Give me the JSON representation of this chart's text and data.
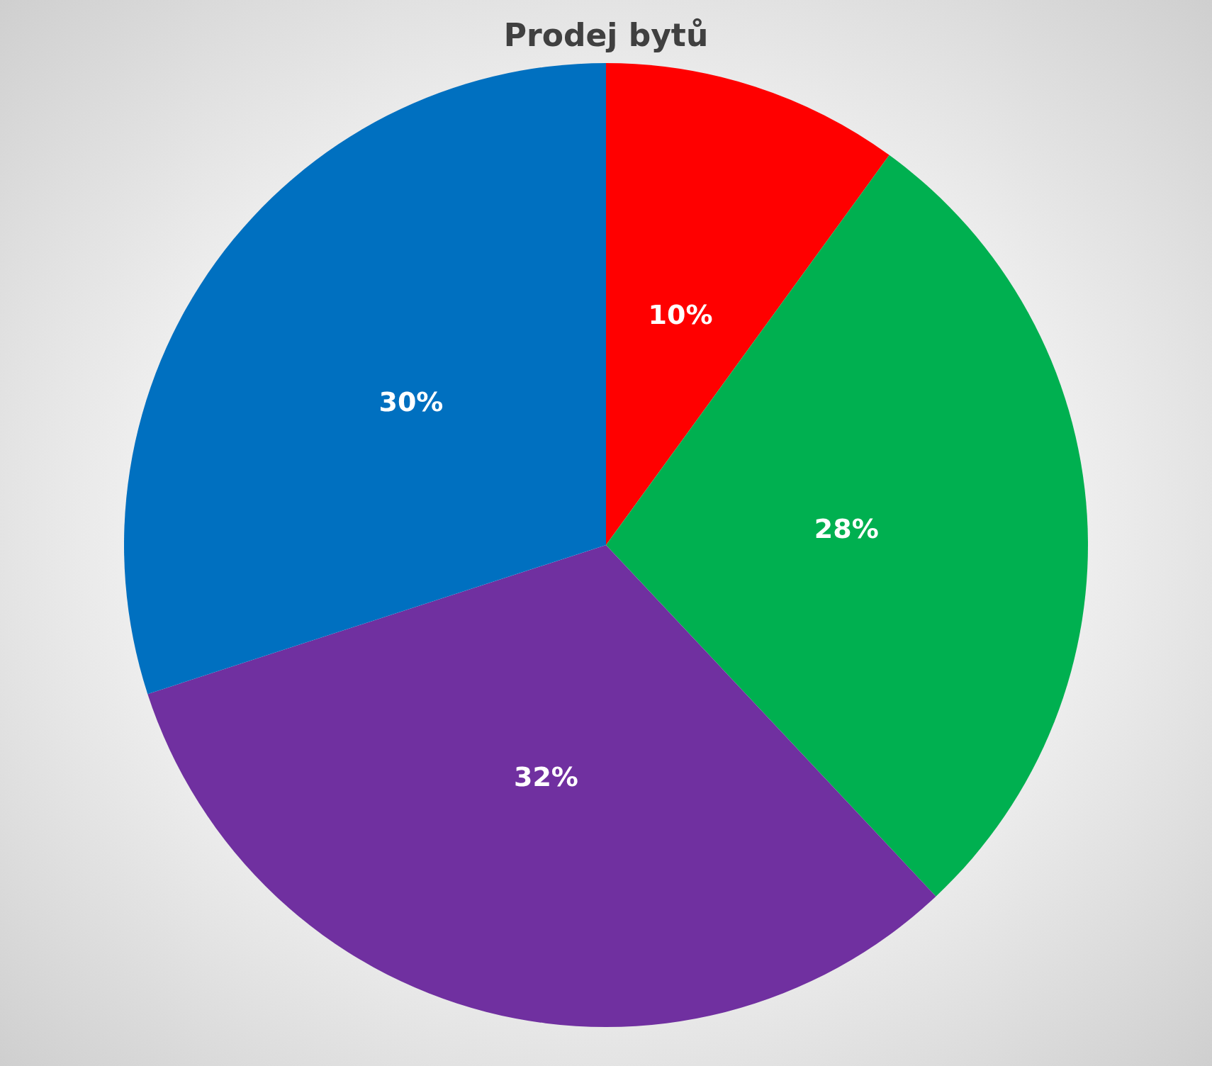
{
  "chart_data": {
    "type": "pie",
    "title": "Prodej bytů",
    "categories": [
      null,
      null,
      null,
      null
    ],
    "values": [
      10,
      28,
      32,
      30
    ],
    "colors": [
      "#ff0000",
      "#00b050",
      "#7030a0",
      "#0070c0"
    ],
    "value_labels": [
      "10%",
      "28%",
      "32%",
      "30%"
    ],
    "legend": false
  }
}
